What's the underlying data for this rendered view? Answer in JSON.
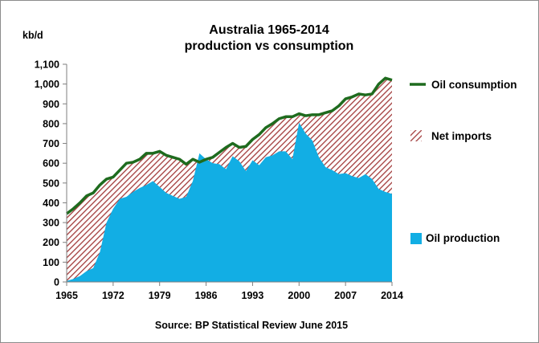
{
  "chart_data": {
    "type": "area",
    "title": "Australia 1965-2014",
    "subtitle": "production vs consumption",
    "ylabel": "kb/d",
    "xlabel": "",
    "source": "Source: BP Statistical Review  June 2015",
    "ylim": [
      0,
      1100
    ],
    "xlim": [
      1965,
      2014
    ],
    "y_ticks": [
      "0",
      "100",
      "200",
      "300",
      "400",
      "500",
      "600",
      "700",
      "800",
      "900",
      "1,000",
      "1,100"
    ],
    "x_ticks": [
      "1965",
      "1972",
      "1979",
      "1986",
      "1993",
      "2000",
      "2007",
      "2014"
    ],
    "grid": false,
    "legend_position": "right",
    "x": [
      1965,
      1966,
      1967,
      1968,
      1969,
      1970,
      1971,
      1972,
      1973,
      1974,
      1975,
      1976,
      1977,
      1978,
      1979,
      1980,
      1981,
      1982,
      1983,
      1984,
      1985,
      1986,
      1987,
      1988,
      1989,
      1990,
      1991,
      1992,
      1993,
      1994,
      1995,
      1996,
      1997,
      1998,
      1999,
      2000,
      2001,
      2002,
      2003,
      2004,
      2005,
      2006,
      2007,
      2008,
      2009,
      2010,
      2011,
      2012,
      2013,
      2014
    ],
    "series": [
      {
        "name": "Oil consumption",
        "kind": "line",
        "color": "#1e6b1e",
        "values": [
          345,
          370,
          400,
          435,
          450,
          490,
          520,
          530,
          565,
          600,
          605,
          620,
          650,
          650,
          660,
          640,
          630,
          620,
          595,
          620,
          605,
          620,
          630,
          655,
          680,
          700,
          680,
          685,
          720,
          745,
          780,
          800,
          825,
          835,
          835,
          850,
          840,
          845,
          845,
          855,
          865,
          890,
          925,
          935,
          950,
          945,
          950,
          1000,
          1030,
          1020
        ]
      },
      {
        "name": "Net imports",
        "kind": "hatched-area",
        "color": "#a23a3a",
        "values": [
          340,
          355,
          370,
          380,
          380,
          340,
          220,
          160,
          145,
          170,
          150,
          145,
          160,
          140,
          180,
          190,
          195,
          200,
          165,
          110,
          0,
          0,
          30,
          60,
          110,
          65,
          70,
          125,
          105,
          155,
          150,
          160,
          165,
          175,
          215,
          45,
          90,
          130,
          215,
          275,
          300,
          345,
          375,
          400,
          425,
          400,
          430,
          530,
          575,
          575
        ]
      },
      {
        "name": "Oil production",
        "kind": "area",
        "color": "#12aee4",
        "values": [
          5,
          15,
          30,
          55,
          70,
          150,
          300,
          370,
          420,
          430,
          455,
          475,
          490,
          510,
          480,
          450,
          435,
          420,
          430,
          510,
          650,
          620,
          600,
          595,
          570,
          635,
          610,
          560,
          615,
          590,
          630,
          640,
          660,
          660,
          620,
          805,
          750,
          715,
          630,
          580,
          565,
          545,
          550,
          535,
          525,
          545,
          520,
          470,
          455,
          445
        ]
      }
    ]
  },
  "legend": {
    "consumption_label": "Oil consumption",
    "imports_label": "Net imports",
    "production_label": "Oil production"
  }
}
